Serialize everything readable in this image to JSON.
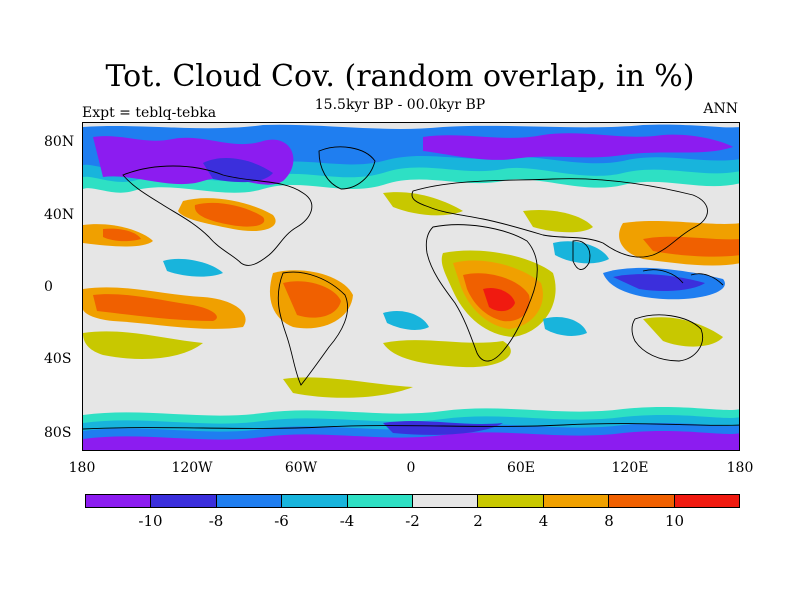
{
  "title": "Tot. Cloud Cov. (random overlap, in %)",
  "subtitle": "15.5kyr BP - 00.0kyr BP",
  "experiment_label": "Expt = teblq-tebka",
  "season_label": "ANN",
  "map": {
    "lat_labels": [
      "80N",
      "40N",
      "0",
      "40S",
      "80S"
    ],
    "lon_labels": [
      "180",
      "120W",
      "60W",
      "0",
      "60E",
      "120E",
      "180"
    ]
  },
  "colorbar": {
    "colors": [
      "#8c1cf0",
      "#3b2fdc",
      "#1f7ef0",
      "#18b4dc",
      "#2ee0c4",
      "#e6e6e6",
      "#c8c800",
      "#f0a000",
      "#f06000",
      "#f01a10"
    ],
    "labels": [
      "-10",
      "-8",
      "-6",
      "-4",
      "-2",
      "2",
      "4",
      "8",
      "10"
    ]
  },
  "colors": {
    "neutral": "#e6e6e6",
    "decrease_strong": "#8c1cf0",
    "increase_strong": "#f01a10"
  }
}
